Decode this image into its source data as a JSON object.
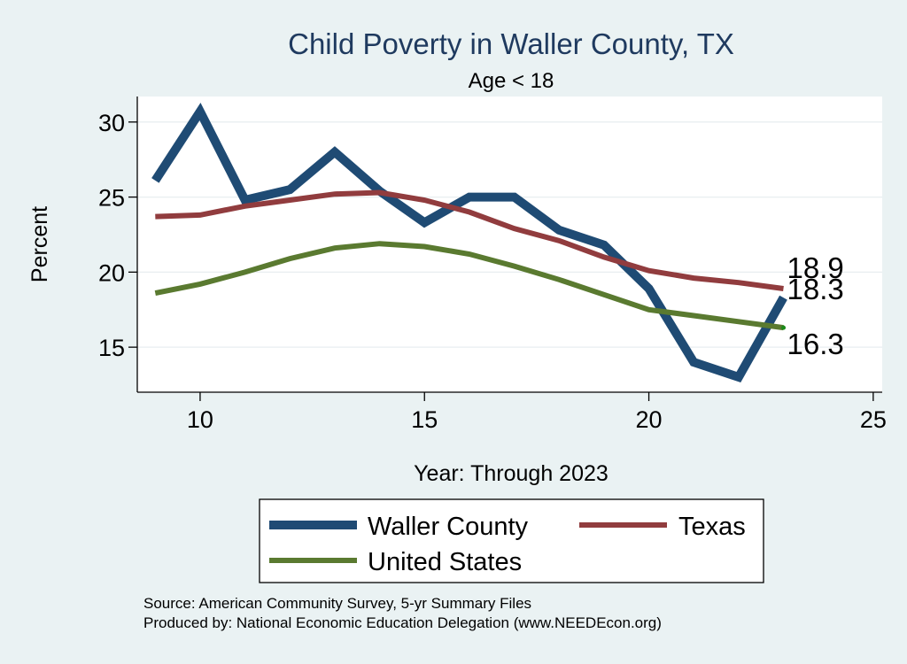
{
  "chart_data": {
    "type": "line",
    "title": "Child Poverty in Waller County, TX",
    "subtitle": "Age < 18",
    "xlabel": "Year: Through 2023",
    "ylabel": "Percent",
    "xlim": [
      8.6,
      25.2
    ],
    "ylim": [
      12.0,
      31.7
    ],
    "xticks": [
      10,
      15,
      20,
      25
    ],
    "yticks": [
      15,
      20,
      25,
      30
    ],
    "grid": true,
    "legend_position": "bottom",
    "x": [
      9,
      10,
      11,
      12,
      13,
      14,
      15,
      16,
      17,
      18,
      19,
      20,
      21,
      22,
      23
    ],
    "series": [
      {
        "name": "Waller County",
        "color": "#1f4b74",
        "values": [
          26.1,
          30.7,
          24.8,
          25.5,
          28.0,
          25.4,
          23.3,
          25.0,
          25.0,
          22.8,
          21.8,
          18.9,
          14.0,
          13.0,
          18.3
        ],
        "end_label": "18.3"
      },
      {
        "name": "Texas",
        "color": "#913c3e",
        "values": [
          23.7,
          23.8,
          24.4,
          24.8,
          25.2,
          25.3,
          24.8,
          24.0,
          22.9,
          22.1,
          21.0,
          20.1,
          19.6,
          19.3,
          18.9
        ],
        "end_label": "18.9"
      },
      {
        "name": "United States",
        "color": "#5a7a30",
        "values": [
          18.6,
          19.2,
          20.0,
          20.9,
          21.6,
          21.9,
          21.7,
          21.2,
          20.4,
          19.5,
          18.5,
          17.5,
          17.1,
          16.7,
          16.3
        ],
        "end_label": "16.3"
      }
    ]
  },
  "footer": {
    "source": "Source: American Community Survey, 5-yr Summary Files",
    "produced_by": "Produced by: National Economic Education Delegation (www.NEEDEcon.org)"
  },
  "colors": {
    "background": "#eaf2f3",
    "plot_background": "#ffffff",
    "title": "#1f3a5f"
  }
}
